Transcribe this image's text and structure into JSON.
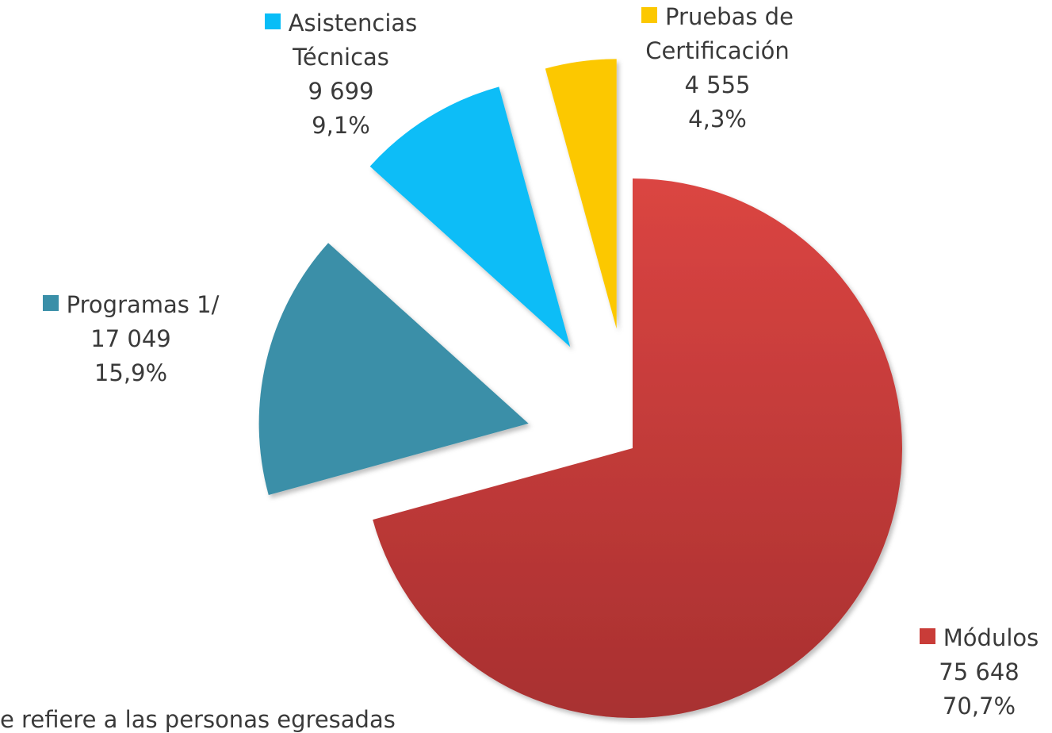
{
  "chart_data": {
    "type": "pie",
    "categories": [
      "Módulos",
      "Programas 1/",
      "Asistencias Técnicas",
      "Pruebas de Certificación"
    ],
    "values": [
      75648,
      17049,
      9699,
      4555
    ],
    "value_labels": [
      "75 648",
      "17 049",
      "9 699",
      "4 555"
    ],
    "percentages": [
      70.7,
      15.9,
      9.1,
      4.3
    ],
    "percentage_labels": [
      "70,7%",
      "15,9%",
      "9,1%",
      "4,3%"
    ],
    "colors": [
      "#c93c38",
      "#3a8fa8",
      "#08bdf7",
      "#fcc800"
    ],
    "note": "e refiere a las personas egresadas"
  }
}
